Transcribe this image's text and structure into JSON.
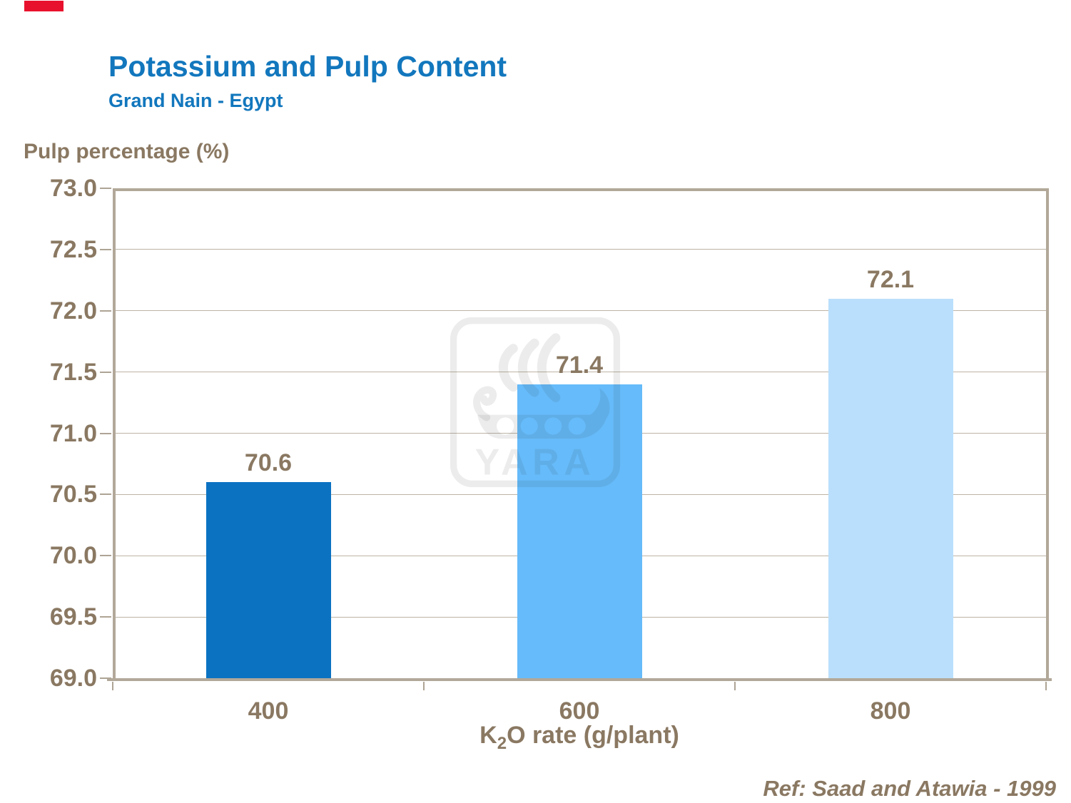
{
  "page": {
    "title": "Potassium and Pulp Content",
    "subtitle": "Grand Nain - Egypt",
    "reference": "Ref: Saad and Atawia - 1999",
    "watermark_text": "YARA",
    "accent_red": "#E8112D",
    "title_color": "#1277BD",
    "text_brown": "#8A7862",
    "axis_color": "#B2A899",
    "gridline_color": "#BDB4A6"
  },
  "chart_data": {
    "type": "bar",
    "title": "Potassium and Pulp Content",
    "subtitle": "Grand Nain - Egypt",
    "categories": [
      "400",
      "600",
      "800"
    ],
    "values": [
      70.6,
      71.4,
      72.1
    ],
    "bar_labels": [
      "70.6",
      "71.4",
      "72.1"
    ],
    "bar_colors": [
      "#0B72C2",
      "#66BBFA",
      "#BADFFC"
    ],
    "xlabel": "K2O rate (g/plant)",
    "xlabel_parts": {
      "pre": "K",
      "sub": "2",
      "post": "O rate (g/plant)"
    },
    "ylabel": "Pulp percentage (%)",
    "ylim": [
      69.0,
      73.0
    ],
    "ytick_step": 0.5,
    "yticks": [
      "73.0",
      "72.5",
      "72.0",
      "71.5",
      "71.0",
      "70.5",
      "70.0",
      "69.5",
      "69.0"
    ],
    "grid": true,
    "legend": false,
    "annotation": "Ref: Saad and Atawia - 1999"
  }
}
